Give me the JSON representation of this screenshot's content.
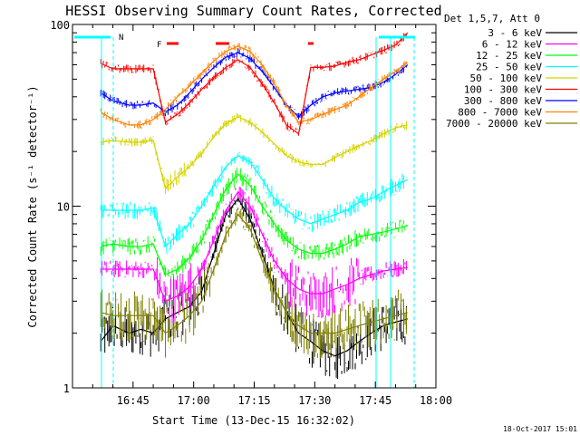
{
  "chart_data": {
    "type": "line",
    "title": "HESSI Observing Summary Count Rates, Corrected",
    "xlabel": "Start Time (13-Dec-15 16:32:02)",
    "ylabel": "Corrected Count Rate (s⁻¹ detector⁻¹)",
    "yscale": "log",
    "ylim": [
      1,
      100
    ],
    "xlim_minutes_after_1630": [
      0,
      90
    ],
    "x_ticks": [
      "16:45",
      "17:00",
      "17:15",
      "17:30",
      "17:45",
      "18:00"
    ],
    "y_ticks": [
      "1",
      "10",
      "100"
    ],
    "legend_title": "Det 1,5,7, Att 0",
    "legend_placement": "right, outside plot",
    "timestamp": "18-Oct-2017 15:01",
    "flag_labels": [
      "N",
      "F"
    ],
    "x_sample_minutes": [
      7,
      10,
      14,
      17,
      20,
      23,
      26,
      29,
      32,
      35,
      38,
      41,
      44,
      47,
      50,
      53,
      56,
      59,
      62,
      65,
      68,
      71,
      74,
      77,
      80,
      83
    ],
    "series": [
      {
        "name": "3 - 6 keV",
        "color": "#000000",
        "values": [
          1.8,
          2.2,
          2.0,
          2.1,
          2.0,
          2.4,
          2.6,
          2.8,
          3.4,
          5.5,
          9.0,
          11.0,
          8.5,
          5.5,
          3.5,
          2.6,
          2.0,
          1.8,
          1.6,
          1.5,
          1.6,
          1.8,
          2.0,
          2.2,
          2.3,
          2.4
        ]
      },
      {
        "name": "6 - 12 keV",
        "color": "#ff00ff",
        "values": [
          4.5,
          4.5,
          4.5,
          4.5,
          4.5,
          3.0,
          3.2,
          3.6,
          4.5,
          6.5,
          9.5,
          12.0,
          10.0,
          7.0,
          5.0,
          4.0,
          3.5,
          3.3,
          3.3,
          3.5,
          3.7,
          4.0,
          4.2,
          4.4,
          4.5,
          4.6
        ]
      },
      {
        "name": "12 - 25 keV",
        "color": "#00ff00",
        "values": [
          6.0,
          6.2,
          6.0,
          6.0,
          6.2,
          4.2,
          4.5,
          5.2,
          6.5,
          9.0,
          12.5,
          15.0,
          13.0,
          10.0,
          8.0,
          6.5,
          5.8,
          5.5,
          5.5,
          5.8,
          6.2,
          6.8,
          7.0,
          7.2,
          7.5,
          7.8
        ]
      },
      {
        "name": "25 - 50 keV",
        "color": "#00ffff",
        "values": [
          9.5,
          9.5,
          9.5,
          9.5,
          9.8,
          6.0,
          7.0,
          8.0,
          10.0,
          13.0,
          16.5,
          19.0,
          17.5,
          14.0,
          11.0,
          9.5,
          8.5,
          8.0,
          8.5,
          9.0,
          9.5,
          10.5,
          11.0,
          12.0,
          13.0,
          14.0
        ]
      },
      {
        "name": "50 - 100 keV",
        "color": "#d4d400",
        "values": [
          22.5,
          23.0,
          22.5,
          22.5,
          23.0,
          12.5,
          14.5,
          16.5,
          19.5,
          24.0,
          28.5,
          31.0,
          29.0,
          25.5,
          22.0,
          19.0,
          17.5,
          17.0,
          17.0,
          18.5,
          20.0,
          21.5,
          23.0,
          25.0,
          27.0,
          28.0
        ]
      },
      {
        "name": "100 - 300 keV",
        "color": "#ff0000",
        "values": [
          61.0,
          57.0,
          57.0,
          57.0,
          57.0,
          29.0,
          32.0,
          37.0,
          44.0,
          51.0,
          58.0,
          64.0,
          58.0,
          47.0,
          37.0,
          28.0,
          25.0,
          58.0,
          58.0,
          59.0,
          62.0,
          64.0,
          68.0,
          72.0,
          77.0,
          90.0
        ]
      },
      {
        "name": "300 - 800 keV",
        "color": "#0000ff",
        "values": [
          42.0,
          38.0,
          36.0,
          36.0,
          37.0,
          33.0,
          36.0,
          42.0,
          50.0,
          58.0,
          66.0,
          70.0,
          65.0,
          55.0,
          45.0,
          36.0,
          31.0,
          36.0,
          40.0,
          42.0,
          43.0,
          44.0,
          45.0,
          48.0,
          53.0,
          60.0
        ]
      },
      {
        "name": "800 - 7000 keV",
        "color": "#ff8000",
        "values": [
          33.0,
          30.0,
          28.0,
          28.0,
          30.0,
          34.0,
          40.0,
          46.0,
          54.0,
          63.0,
          71.0,
          76.0,
          71.0,
          60.0,
          47.0,
          36.0,
          29.0,
          30.0,
          32.0,
          34.0,
          36.0,
          40.0,
          45.0,
          50.0,
          55.0,
          62.0
        ]
      },
      {
        "name": "7000 - 20000 keV",
        "color": "#808000",
        "values": [
          2.6,
          2.5,
          2.5,
          2.5,
          2.5,
          2.0,
          2.2,
          2.5,
          3.0,
          4.5,
          7.0,
          9.0,
          7.5,
          5.0,
          3.5,
          2.6,
          2.2,
          2.0,
          2.0,
          2.0,
          2.1,
          2.2,
          2.3,
          2.4,
          2.5,
          2.6
        ]
      }
    ]
  }
}
